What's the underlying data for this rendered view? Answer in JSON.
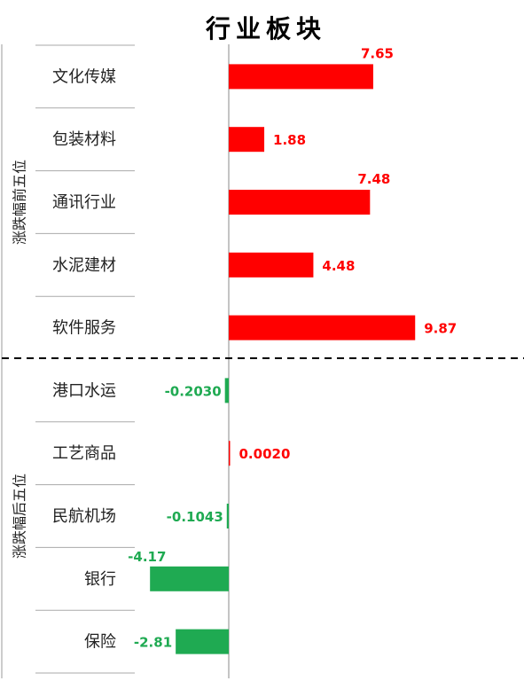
{
  "chart_data": {
    "type": "bar",
    "orientation": "horizontal",
    "title": "行业板块",
    "groups": [
      {
        "label": "涨跌幅前五位",
        "categories": [
          "文化传媒",
          "包装材料",
          "通讯行业",
          "水泥建材",
          "软件服务"
        ],
        "values": [
          7.65,
          1.88,
          7.48,
          4.48,
          9.87
        ],
        "value_labels": [
          "7.65",
          "1.88",
          "7.48",
          "4.48",
          "9.87"
        ]
      },
      {
        "label": "涨跌幅后五位",
        "categories": [
          "港口水运",
          "工艺商品",
          "民航机场",
          "银行",
          "保险"
        ],
        "values": [
          -0.203,
          0.002,
          -0.1043,
          -4.17,
          -2.81
        ],
        "value_labels": [
          "-0.2030",
          "0.0020",
          "-0.1043",
          "-4.17",
          "-2.81"
        ]
      }
    ],
    "colors": {
      "positive": "#ff0000",
      "negative": "#1faa52"
    },
    "grid": false,
    "legend": "none"
  }
}
